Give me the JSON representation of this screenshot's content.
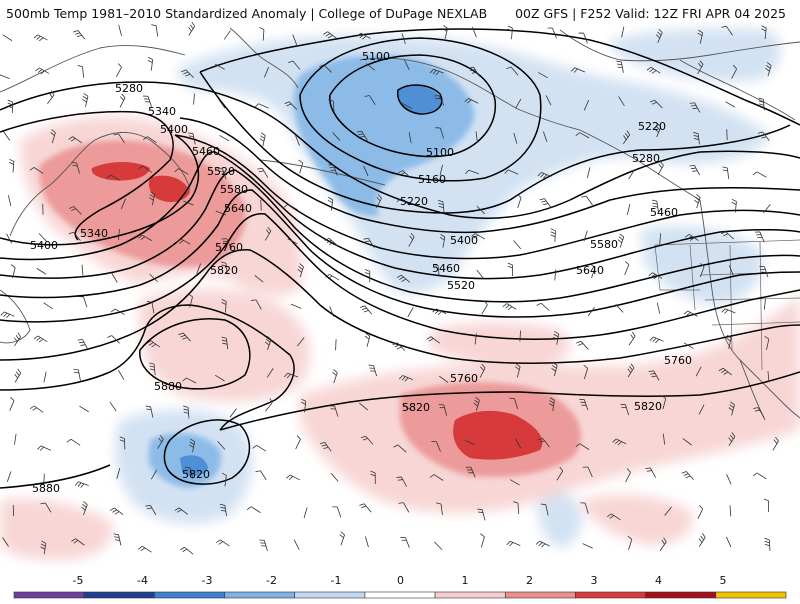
{
  "header": {
    "title_left": "500mb Temp 1981–2010 Standardized Anomaly | College of DuPage NEXLAB",
    "title_right": "00Z GFS | F252 Valid: 12Z FRI APR 04 2025"
  },
  "map": {
    "contours": [
      {
        "label": "5100"
      },
      {
        "label": "5160"
      },
      {
        "label": "5220"
      },
      {
        "label": "5280"
      },
      {
        "label": "5340"
      },
      {
        "label": "5400"
      },
      {
        "label": "5460"
      },
      {
        "label": "5520"
      },
      {
        "label": "5580"
      },
      {
        "label": "5640"
      },
      {
        "label": "5760"
      },
      {
        "label": "5820"
      },
      {
        "label": "5880"
      }
    ],
    "contour_labels": [
      {
        "text": "5100"
      },
      {
        "text": "5100"
      },
      {
        "text": "5160"
      },
      {
        "text": "5220"
      },
      {
        "text": "5220"
      },
      {
        "text": "5280"
      },
      {
        "text": "5280"
      },
      {
        "text": "5340"
      },
      {
        "text": "5340"
      },
      {
        "text": "5400"
      },
      {
        "text": "5400"
      },
      {
        "text": "5400"
      },
      {
        "text": "5460"
      },
      {
        "text": "5460"
      },
      {
        "text": "5460"
      },
      {
        "text": "5520"
      },
      {
        "text": "5520"
      },
      {
        "text": "5580"
      },
      {
        "text": "5580"
      },
      {
        "text": "5640"
      },
      {
        "text": "5640"
      },
      {
        "text": "5760"
      },
      {
        "text": "5760"
      },
      {
        "text": "5760"
      },
      {
        "text": "5820"
      },
      {
        "text": "5820"
      },
      {
        "text": "5820"
      },
      {
        "text": "5820"
      },
      {
        "text": "5880"
      },
      {
        "text": "5880"
      }
    ]
  },
  "colorbar": {
    "ticks": [
      "-5",
      "-4",
      "-3",
      "-2",
      "-1",
      "0",
      "1",
      "2",
      "3",
      "4",
      "5"
    ],
    "colors": [
      "#6b3fa0",
      "#1f3f8f",
      "#3d7fd0",
      "#7fb0e6",
      "#c3d8f0",
      "#ffffff",
      "#f6cccc",
      "#ea8f8f",
      "#d63a3a",
      "#a50f15",
      "#f2c200"
    ]
  }
}
